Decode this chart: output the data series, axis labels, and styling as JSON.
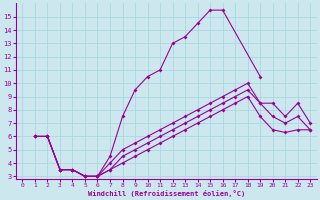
{
  "xlabel": "Windchill (Refroidissement éolien,°C)",
  "bg_color": "#cce8ee",
  "line_color": "#990099",
  "grid_color": "#aad8e0",
  "xlim": [
    -0.5,
    23.5
  ],
  "ylim": [
    2.8,
    16.0
  ],
  "xticks": [
    0,
    1,
    2,
    3,
    4,
    5,
    6,
    7,
    8,
    9,
    10,
    11,
    12,
    13,
    14,
    15,
    16,
    17,
    18,
    19,
    20,
    21,
    22,
    23
  ],
  "yticks": [
    3,
    4,
    5,
    6,
    7,
    8,
    9,
    10,
    11,
    12,
    13,
    14,
    15
  ],
  "lines": [
    {
      "x": [
        1,
        2,
        3,
        4,
        5,
        6,
        7,
        8,
        9,
        10,
        11,
        12,
        13,
        14,
        15,
        16,
        19
      ],
      "y": [
        6,
        6,
        3.5,
        3.5,
        3.0,
        3.0,
        4.5,
        7.5,
        9.5,
        10.5,
        11.0,
        13.0,
        13.5,
        14.5,
        15.5,
        15.5,
        10.5
      ]
    },
    {
      "x": [
        1,
        2,
        3,
        4,
        5,
        6,
        7,
        8,
        9,
        10,
        11,
        12,
        13,
        14,
        15,
        16,
        17,
        18,
        19,
        20,
        21,
        22,
        23
      ],
      "y": [
        6,
        6,
        3.5,
        3.5,
        3.0,
        3.0,
        4.0,
        5.0,
        5.5,
        6.0,
        6.5,
        7.0,
        7.5,
        8.0,
        8.5,
        9.0,
        9.5,
        10.0,
        8.5,
        8.5,
        7.5,
        8.5,
        7.0
      ]
    },
    {
      "x": [
        1,
        2,
        3,
        4,
        5,
        6,
        7,
        8,
        9,
        10,
        11,
        12,
        13,
        14,
        15,
        16,
        17,
        18,
        19,
        20,
        21,
        22,
        23
      ],
      "y": [
        6,
        6,
        3.5,
        3.5,
        3.0,
        3.0,
        3.5,
        4.5,
        5.0,
        5.5,
        6.0,
        6.5,
        7.0,
        7.5,
        8.0,
        8.5,
        9.0,
        9.5,
        8.5,
        7.5,
        7.0,
        7.5,
        6.5
      ]
    },
    {
      "x": [
        1,
        2,
        3,
        4,
        5,
        6,
        7,
        8,
        9,
        10,
        11,
        12,
        13,
        14,
        15,
        16,
        17,
        18,
        19,
        20,
        21,
        22,
        23
      ],
      "y": [
        6,
        6,
        3.5,
        3.5,
        3.0,
        3.0,
        3.5,
        4.0,
        4.5,
        5.0,
        5.5,
        6.0,
        6.5,
        7.0,
        7.5,
        8.0,
        8.5,
        9.0,
        7.5,
        6.5,
        6.3,
        6.5,
        6.5
      ]
    }
  ]
}
